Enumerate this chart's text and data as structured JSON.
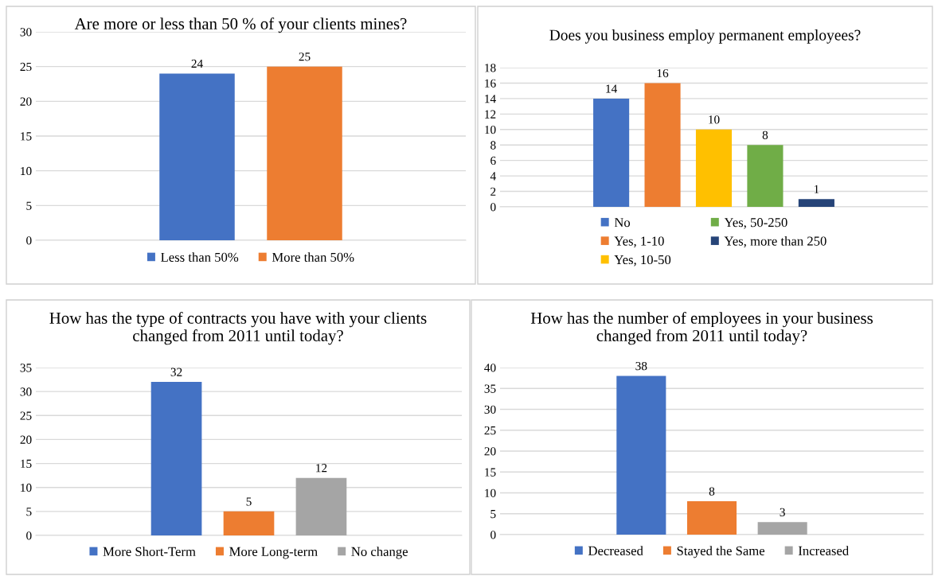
{
  "chart_data": [
    {
      "type": "bar",
      "title": "Are more or less than 50 % of your clients mines?",
      "categories": [
        null
      ],
      "series": [
        {
          "name": "Less than 50%",
          "color": "#4472c4",
          "values": [
            24
          ]
        },
        {
          "name": "More than 50%",
          "color": "#ed7d31",
          "values": [
            25
          ]
        }
      ],
      "ylim": [
        0,
        30
      ],
      "yticks": [
        0,
        5,
        10,
        15,
        20,
        25,
        30
      ],
      "grid": "y",
      "legend": "bottom",
      "data_labels": true
    },
    {
      "type": "bar",
      "title": "Does you business employ permanent employees?",
      "categories": [
        null
      ],
      "series": [
        {
          "name": "No",
          "color": "#4472c4",
          "values": [
            14
          ]
        },
        {
          "name": "Yes, 1-10",
          "color": "#ed7d31",
          "values": [
            16
          ]
        },
        {
          "name": "Yes, 10-50",
          "color": "#ffc000",
          "values": [
            10
          ]
        },
        {
          "name": "Yes, 50-250",
          "color": "#70ad47",
          "values": [
            8
          ]
        },
        {
          "name": "Yes, more than 250",
          "color": "#264478",
          "values": [
            1
          ]
        }
      ],
      "ylim": [
        0,
        18
      ],
      "yticks": [
        0,
        2,
        4,
        6,
        8,
        10,
        12,
        14,
        16,
        18
      ],
      "grid": "y",
      "legend": "bottom",
      "data_labels": true
    },
    {
      "type": "bar",
      "title": "How has the type of contracts you have with your clients changed from 2011 until today?",
      "categories": [
        null
      ],
      "series": [
        {
          "name": "More Short-Term",
          "color": "#4472c4",
          "values": [
            32
          ]
        },
        {
          "name": "More Long-term",
          "color": "#ed7d31",
          "values": [
            5
          ]
        },
        {
          "name": "No change",
          "color": "#a5a5a5",
          "values": [
            12
          ]
        }
      ],
      "ylim": [
        0,
        35
      ],
      "yticks": [
        0,
        5,
        10,
        15,
        20,
        25,
        30,
        35
      ],
      "grid": "y",
      "legend": "bottom",
      "data_labels": true
    },
    {
      "type": "bar",
      "title": "How has the number of employees in your business changed from 2011 until today?",
      "categories": [
        null
      ],
      "series": [
        {
          "name": "Decreased",
          "color": "#4472c4",
          "values": [
            38
          ]
        },
        {
          "name": "Stayed the Same",
          "color": "#ed7d31",
          "values": [
            8
          ]
        },
        {
          "name": "Increased",
          "color": "#a5a5a5",
          "values": [
            3
          ]
        }
      ],
      "ylim": [
        0,
        40
      ],
      "yticks": [
        0,
        5,
        10,
        15,
        20,
        25,
        30,
        35,
        40
      ],
      "grid": "y",
      "legend": "bottom",
      "data_labels": true
    }
  ]
}
